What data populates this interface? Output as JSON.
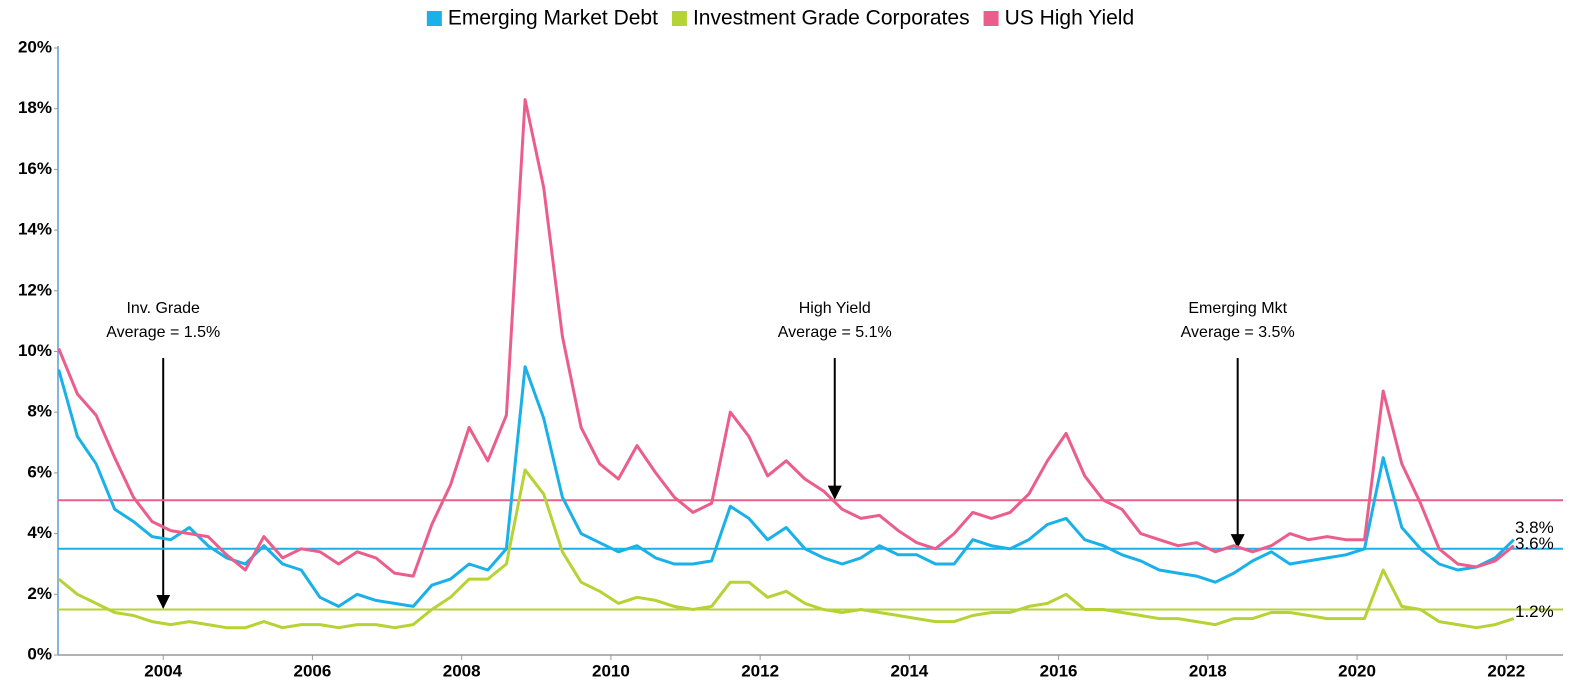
{
  "chart_data": {
    "type": "line",
    "xlim": [
      2002.59,
      2022.76
    ],
    "xticks": [
      2004,
      2006,
      2008,
      2010,
      2012,
      2014,
      2016,
      2018,
      2020,
      2022
    ],
    "ylim": [
      0,
      20
    ],
    "yticks": [
      {
        "value": 0,
        "label": "0%"
      },
      {
        "value": 2,
        "label": "2%"
      },
      {
        "value": 4,
        "label": "4%"
      },
      {
        "value": 6,
        "label": "6%"
      },
      {
        "value": 8,
        "label": "8%"
      },
      {
        "value": 10,
        "label": "10%"
      },
      {
        "value": 12,
        "label": "12%"
      },
      {
        "value": 14,
        "label": "14%"
      },
      {
        "value": 16,
        "label": "16%"
      },
      {
        "value": 18,
        "label": "18%"
      },
      {
        "value": 20,
        "label": "20%"
      }
    ],
    "x": [
      2002.6,
      2002.85,
      2003.1,
      2003.35,
      2003.6,
      2003.85,
      2004.1,
      2004.35,
      2004.6,
      2004.85,
      2005.1,
      2005.35,
      2005.6,
      2005.85,
      2006.1,
      2006.35,
      2006.6,
      2006.85,
      2007.1,
      2007.35,
      2007.6,
      2007.85,
      2008.1,
      2008.35,
      2008.6,
      2008.85,
      2009.1,
      2009.35,
      2009.6,
      2009.85,
      2010.1,
      2010.35,
      2010.6,
      2010.85,
      2011.1,
      2011.35,
      2011.6,
      2011.85,
      2012.1,
      2012.35,
      2012.6,
      2012.85,
      2013.1,
      2013.35,
      2013.6,
      2013.85,
      2014.1,
      2014.35,
      2014.6,
      2014.85,
      2015.1,
      2015.35,
      2015.6,
      2015.85,
      2016.1,
      2016.35,
      2016.6,
      2016.85,
      2017.1,
      2017.35,
      2017.6,
      2017.85,
      2018.1,
      2018.35,
      2018.6,
      2018.85,
      2019.1,
      2019.35,
      2019.6,
      2019.85,
      2020.1,
      2020.35,
      2020.6,
      2020.85,
      2021.1,
      2021.35,
      2021.6,
      2021.85,
      2022.1
    ],
    "series": [
      {
        "name": "Emerging Market Debt",
        "color": "#1ab0e8",
        "end_label": "3.8%",
        "values": [
          9.4,
          7.2,
          6.3,
          4.8,
          4.4,
          3.9,
          3.8,
          4.2,
          3.6,
          3.2,
          3.0,
          3.6,
          3.0,
          2.8,
          1.9,
          1.6,
          2.0,
          1.8,
          1.7,
          1.6,
          2.3,
          2.5,
          3.0,
          2.8,
          3.5,
          9.5,
          7.8,
          5.2,
          4.0,
          3.7,
          3.4,
          3.6,
          3.2,
          3.0,
          3.0,
          3.1,
          4.9,
          4.5,
          3.8,
          4.2,
          3.5,
          3.2,
          3.0,
          3.2,
          3.6,
          3.3,
          3.3,
          3.0,
          3.0,
          3.8,
          3.6,
          3.5,
          3.8,
          4.3,
          4.5,
          3.8,
          3.6,
          3.3,
          3.1,
          2.8,
          2.7,
          2.6,
          2.4,
          2.7,
          3.1,
          3.4,
          3.0,
          3.1,
          3.2,
          3.3,
          3.5,
          6.5,
          4.2,
          3.5,
          3.0,
          2.8,
          2.9,
          3.2,
          3.8
        ]
      },
      {
        "name": "Investment Grade Corporates",
        "color": "#b5d334",
        "end_label": "1.2%",
        "values": [
          2.5,
          2.0,
          1.7,
          1.4,
          1.3,
          1.1,
          1.0,
          1.1,
          1.0,
          0.9,
          0.9,
          1.1,
          0.9,
          1.0,
          1.0,
          0.9,
          1.0,
          1.0,
          0.9,
          1.0,
          1.5,
          1.9,
          2.5,
          2.5,
          3.0,
          6.1,
          5.3,
          3.4,
          2.4,
          2.1,
          1.7,
          1.9,
          1.8,
          1.6,
          1.5,
          1.6,
          2.4,
          2.4,
          1.9,
          2.1,
          1.7,
          1.5,
          1.4,
          1.5,
          1.4,
          1.3,
          1.2,
          1.1,
          1.1,
          1.3,
          1.4,
          1.4,
          1.6,
          1.7,
          2.0,
          1.5,
          1.5,
          1.4,
          1.3,
          1.2,
          1.2,
          1.1,
          1.0,
          1.2,
          1.2,
          1.4,
          1.4,
          1.3,
          1.2,
          1.2,
          1.2,
          2.8,
          1.6,
          1.5,
          1.1,
          1.0,
          0.9,
          1.0,
          1.2
        ]
      },
      {
        "name": "US High Yield",
        "color": "#eb5e8c",
        "end_label": "3.6%",
        "values": [
          10.1,
          8.6,
          7.9,
          6.5,
          5.2,
          4.4,
          4.1,
          4.0,
          3.9,
          3.3,
          2.8,
          3.9,
          3.2,
          3.5,
          3.4,
          3.0,
          3.4,
          3.2,
          2.7,
          2.6,
          4.3,
          5.6,
          7.5,
          6.4,
          7.9,
          18.3,
          15.4,
          10.5,
          7.5,
          6.3,
          5.8,
          6.9,
          6.0,
          5.2,
          4.7,
          5.0,
          8.0,
          7.2,
          5.9,
          6.4,
          5.8,
          5.4,
          4.8,
          4.5,
          4.6,
          4.1,
          3.7,
          3.5,
          4.0,
          4.7,
          4.5,
          4.7,
          5.3,
          6.4,
          7.3,
          5.9,
          5.1,
          4.8,
          4.0,
          3.8,
          3.6,
          3.7,
          3.4,
          3.6,
          3.4,
          3.6,
          4.0,
          3.8,
          3.9,
          3.8,
          3.8,
          8.7,
          6.3,
          5.0,
          3.5,
          3.0,
          2.9,
          3.1,
          3.6
        ]
      }
    ],
    "reference_lines": [
      {
        "value": 1.5,
        "color": "#b5d334",
        "annotation": [
          "Inv. Grade",
          "Average = 1.5%"
        ],
        "annotation_x": 2004
      },
      {
        "value": 5.1,
        "color": "#eb5e8c",
        "annotation": [
          "High Yield",
          "Average = 5.1%"
        ],
        "annotation_x": 2013
      },
      {
        "value": 3.5,
        "color": "#1ab0e8",
        "annotation": [
          "Emerging Mkt",
          "Average = 3.5%"
        ],
        "annotation_x": 2018.4
      }
    ],
    "legend": "top"
  }
}
